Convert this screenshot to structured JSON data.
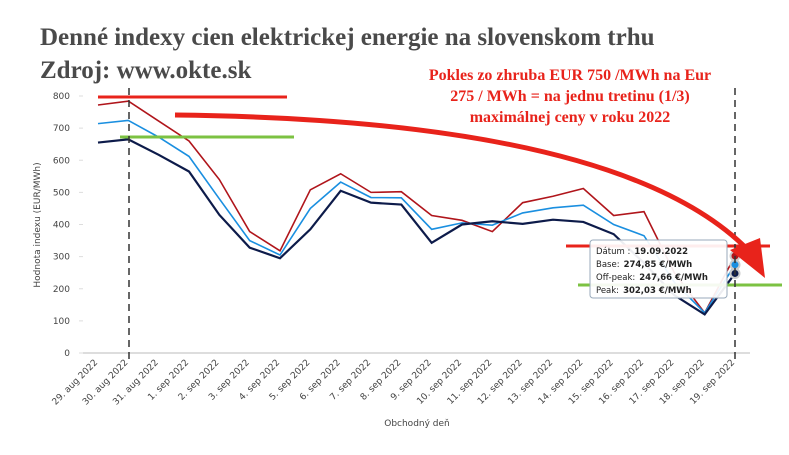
{
  "chart_data": {
    "type": "line",
    "title": "Denné indexy cien elektrickej energie na slovenskom trhu",
    "subtitle": "Zdroj: www.okte.sk",
    "annotation": [
      "Pokles zo zhruba EUR 750 /MWh na Eur",
      "275 / MWh = na jednu tretinu (1/3)",
      "maximálnej ceny v roku 2022"
    ],
    "y_label": "Hodnota indexu (EUR/MWh)",
    "x_label": "Obchodný deň",
    "categories": [
      "29. aug 2022",
      "30. aug 2022",
      "31. aug 2022",
      "1. sep 2022",
      "2. sep 2022",
      "3. sep 2022",
      "4. sep 2022",
      "5. sep 2022",
      "6. sep 2022",
      "7. sep 2022",
      "8. sep 2022",
      "9. sep 2022",
      "10. sep 2022",
      "11. sep 2022",
      "12. sep 2022",
      "13. sep 2022",
      "14. sep 2022",
      "15. sep 2022",
      "16. sep 2022",
      "17. sep 2022",
      "18. sep 2022",
      "19. sep 2022"
    ],
    "series": [
      {
        "name": "Peak",
        "color": "#b0151b",
        "values": [
          772,
          784,
          722,
          660,
          540,
          378,
          318,
          508,
          558,
          500,
          502,
          428,
          413,
          378,
          468,
          488,
          512,
          428,
          440,
          250,
          125,
          302.03
        ]
      },
      {
        "name": "Base",
        "color": "#1a8fe0",
        "values": [
          714,
          724,
          672,
          612,
          480,
          350,
          305,
          450,
          532,
          484,
          483,
          385,
          405,
          398,
          436,
          452,
          460,
          400,
          365,
          220,
          125,
          274.85
        ]
      },
      {
        "name": "Off-peak",
        "color": "#0d1b4a",
        "values": [
          655,
          665,
          617,
          565,
          430,
          328,
          295,
          385,
          505,
          468,
          462,
          343,
          400,
          410,
          402,
          415,
          408,
          370,
          280,
          180,
          120,
          247.66
        ]
      }
    ],
    "ylim": [
      0,
      800
    ],
    "yticks": [
      0,
      100,
      200,
      300,
      400,
      500,
      600,
      700,
      800
    ],
    "grid": false,
    "tooltip": [
      {
        "label": "Dátum :",
        "value": "19.09.2022"
      },
      {
        "label": "Base:",
        "value": "274,85 €/MWh"
      },
      {
        "label": "Off-peak:",
        "value": "247,66 €/MWh"
      },
      {
        "label": "Peak:",
        "value": "302,03 €/MWh"
      }
    ]
  }
}
